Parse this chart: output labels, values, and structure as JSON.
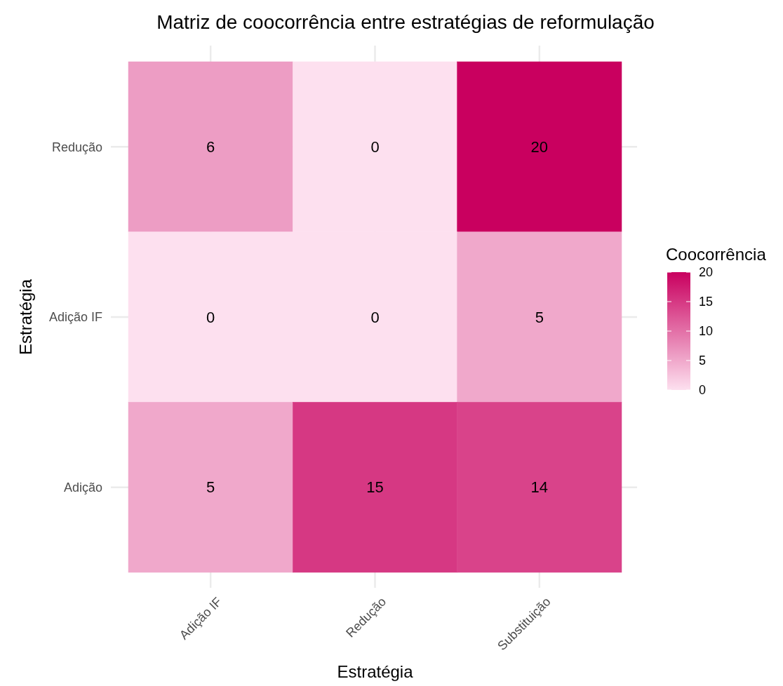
{
  "chart_data": {
    "type": "heatmap",
    "title": "Matriz de coocorrência entre estratégias de reformulação",
    "xlabel": "Estratégia",
    "ylabel": "Estratégia",
    "clabel": "Coocorrência",
    "categories": [
      "Adição IF",
      "Redução",
      "Substituição"
    ],
    "y_categories": [
      "Redução",
      "Adição IF",
      "Adição"
    ],
    "cells": [
      [
        6,
        0,
        20
      ],
      [
        0,
        0,
        5
      ],
      [
        5,
        15,
        14
      ]
    ],
    "clim": [
      0,
      20
    ],
    "cticks": [
      0,
      5,
      10,
      15,
      20
    ],
    "grid": true,
    "data_labels": true
  }
}
